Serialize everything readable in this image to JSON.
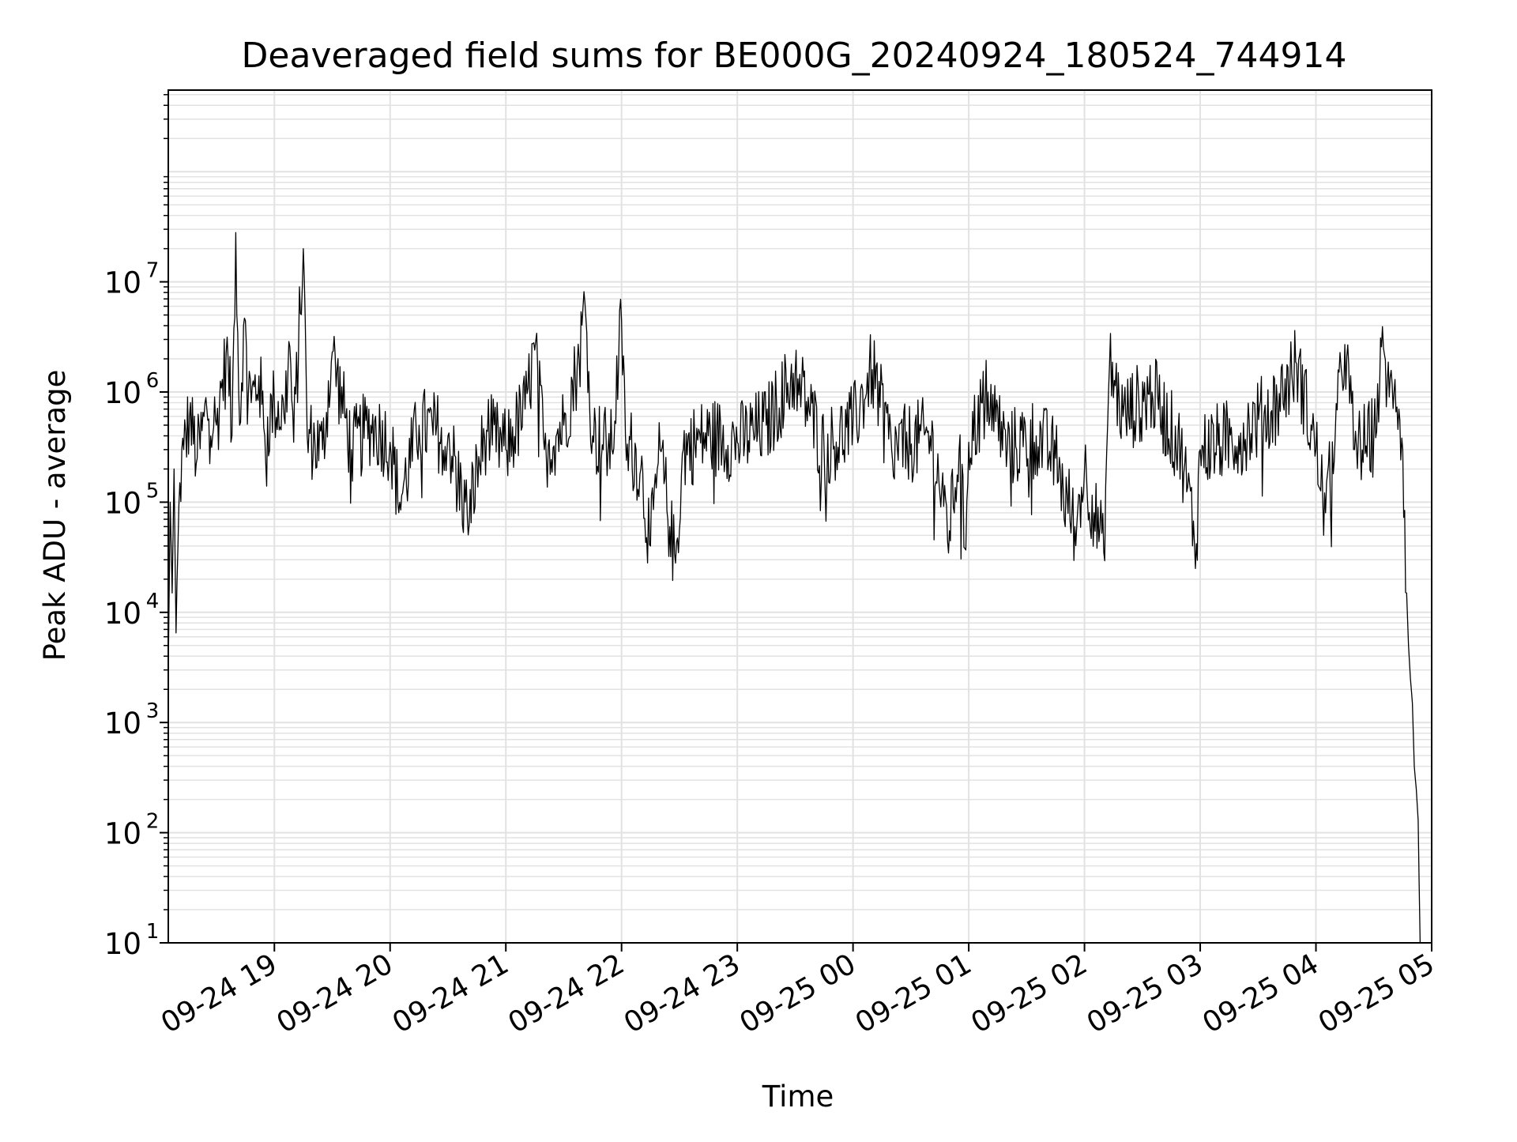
{
  "chart_data": {
    "type": "line",
    "title": "Deaveraged field sums for BE000G_20240924_180524_744914",
    "xlabel": "Time",
    "ylabel": "Peak ADU - average",
    "y_scale": "log",
    "ylim": [
      10,
      550000000
    ],
    "xlim": [
      "2024-09-24 18:05",
      "2024-09-25 05:00"
    ],
    "grid": true,
    "x_ticks": [
      {
        "time": "2024-09-24 19:00",
        "label": "09-24 19"
      },
      {
        "time": "2024-09-24 20:00",
        "label": "09-24 20"
      },
      {
        "time": "2024-09-24 21:00",
        "label": "09-24 21"
      },
      {
        "time": "2024-09-24 22:00",
        "label": "09-24 22"
      },
      {
        "time": "2024-09-24 23:00",
        "label": "09-24 23"
      },
      {
        "time": "2024-09-25 00:00",
        "label": "09-25 00"
      },
      {
        "time": "2024-09-25 01:00",
        "label": "09-25 01"
      },
      {
        "time": "2024-09-25 02:00",
        "label": "09-25 02"
      },
      {
        "time": "2024-09-25 03:00",
        "label": "09-25 03"
      },
      {
        "time": "2024-09-25 04:00",
        "label": "09-25 04"
      },
      {
        "time": "2024-09-25 05:00",
        "label": "09-25 05"
      }
    ],
    "y_ticks": [
      {
        "value": 10,
        "base": "10",
        "exp": "1"
      },
      {
        "value": 100,
        "base": "10",
        "exp": "2"
      },
      {
        "value": 1000,
        "base": "10",
        "exp": "3"
      },
      {
        "value": 10000,
        "base": "10",
        "exp": "4"
      },
      {
        "value": 100000,
        "base": "10",
        "exp": "5"
      },
      {
        "value": 1000000,
        "base": "10",
        "exp": "6"
      },
      {
        "value": 10000000,
        "base": "10",
        "exp": "7"
      }
    ],
    "series": [
      {
        "color": "#000000",
        "points": [
          [
            "2024-09-24 18:05",
            3000
          ],
          [
            "2024-09-24 18:06",
            100000
          ],
          [
            "2024-09-24 18:07",
            15000
          ],
          [
            "2024-09-24 18:08",
            200000
          ],
          [
            "2024-09-24 18:09",
            6500
          ],
          [
            "2024-09-24 18:11",
            150000
          ],
          [
            "2024-09-24 18:13",
            300000
          ],
          [
            "2024-09-24 18:16",
            600000
          ],
          [
            "2024-09-24 18:20",
            250000
          ],
          [
            "2024-09-24 18:25",
            700000
          ],
          [
            "2024-09-24 18:30",
            500000
          ],
          [
            "2024-09-24 18:33",
            1300000
          ],
          [
            "2024-09-24 18:36",
            2000000
          ],
          [
            "2024-09-24 18:38",
            400000
          ],
          [
            "2024-09-24 18:40",
            28000000
          ],
          [
            "2024-09-24 18:42",
            500000
          ],
          [
            "2024-09-24 18:44",
            4000000
          ],
          [
            "2024-09-24 18:48",
            800000
          ],
          [
            "2024-09-24 18:52",
            1400000
          ],
          [
            "2024-09-24 18:55",
            400000
          ],
          [
            "2024-09-24 19:00",
            800000
          ],
          [
            "2024-09-24 19:05",
            600000
          ],
          [
            "2024-09-24 19:08",
            2600000
          ],
          [
            "2024-09-24 19:10",
            350000
          ],
          [
            "2024-09-24 19:15",
            20000000
          ],
          [
            "2024-09-24 19:17",
            400000
          ],
          [
            "2024-09-24 19:25",
            300000
          ],
          [
            "2024-09-24 19:30",
            2300000
          ],
          [
            "2024-09-24 19:40",
            300000
          ],
          [
            "2024-09-24 19:50",
            500000
          ],
          [
            "2024-09-24 20:00",
            350000
          ],
          [
            "2024-09-24 20:05",
            100000
          ],
          [
            "2024-09-24 20:15",
            500000
          ],
          [
            "2024-09-24 20:30",
            400000
          ],
          [
            "2024-09-24 20:40",
            75000
          ],
          [
            "2024-09-24 20:50",
            450000
          ],
          [
            "2024-09-24 21:00",
            300000
          ],
          [
            "2024-09-24 21:10",
            700000
          ],
          [
            "2024-09-24 21:15",
            2400000
          ],
          [
            "2024-09-24 21:20",
            300000
          ],
          [
            "2024-09-24 21:30",
            500000
          ],
          [
            "2024-09-24 21:38",
            2000000
          ],
          [
            "2024-09-24 21:41",
            6500000
          ],
          [
            "2024-09-24 21:45",
            400000
          ],
          [
            "2024-09-24 21:55",
            300000
          ],
          [
            "2024-09-24 22:00",
            4400000
          ],
          [
            "2024-09-24 22:02",
            400000
          ],
          [
            "2024-09-24 22:10",
            200000
          ],
          [
            "2024-09-24 22:15",
            40000
          ],
          [
            "2024-09-24 22:20",
            300000
          ],
          [
            "2024-09-24 22:25",
            60000
          ],
          [
            "2024-09-24 22:28",
            28000
          ],
          [
            "2024-09-24 22:32",
            300000
          ],
          [
            "2024-09-24 22:45",
            400000
          ],
          [
            "2024-09-24 23:00",
            350000
          ],
          [
            "2024-09-24 23:15",
            500000
          ],
          [
            "2024-09-24 23:30",
            1500000
          ],
          [
            "2024-09-24 23:45",
            300000
          ],
          [
            "2024-09-25 00:00",
            500000
          ],
          [
            "2024-09-25 00:10",
            1600000
          ],
          [
            "2024-09-25 00:20",
            300000
          ],
          [
            "2024-09-25 00:40",
            400000
          ],
          [
            "2024-09-25 00:50",
            55000
          ],
          [
            "2024-09-25 00:55",
            300000
          ],
          [
            "2024-09-25 00:58",
            38000
          ],
          [
            "2024-09-25 01:00",
            350000
          ],
          [
            "2024-09-25 01:10",
            1000000
          ],
          [
            "2024-09-25 01:20",
            300000
          ],
          [
            "2024-09-25 01:35",
            400000
          ],
          [
            "2024-09-25 01:45",
            250000
          ],
          [
            "2024-09-25 01:55",
            60000
          ],
          [
            "2024-09-25 02:00",
            200000
          ],
          [
            "2024-09-25 02:10",
            35000
          ],
          [
            "2024-09-25 02:13",
            1800000
          ],
          [
            "2024-09-25 02:20",
            600000
          ],
          [
            "2024-09-25 02:35",
            1000000
          ],
          [
            "2024-09-25 02:50",
            300000
          ],
          [
            "2024-09-25 02:58",
            42000
          ],
          [
            "2024-09-25 03:00",
            300000
          ],
          [
            "2024-09-25 03:20",
            400000
          ],
          [
            "2024-09-25 03:40",
            800000
          ],
          [
            "2024-09-25 03:50",
            1800000
          ],
          [
            "2024-09-25 04:00",
            300000
          ],
          [
            "2024-09-25 04:05",
            80000
          ],
          [
            "2024-09-25 04:10",
            400000
          ],
          [
            "2024-09-25 04:15",
            2700000
          ],
          [
            "2024-09-25 04:20",
            300000
          ],
          [
            "2024-09-25 04:30",
            400000
          ],
          [
            "2024-09-25 04:35",
            2500000
          ],
          [
            "2024-09-25 04:38",
            900000
          ],
          [
            "2024-09-25 04:41",
            1300000
          ],
          [
            "2024-09-25 04:43",
            700000
          ],
          [
            "2024-09-25 04:45",
            300000
          ],
          [
            "2024-09-25 04:47",
            15000
          ],
          [
            "2024-09-25 04:48",
            5000
          ],
          [
            "2024-09-25 04:49",
            2500
          ],
          [
            "2024-09-25 04:50",
            1500
          ],
          [
            "2024-09-25 04:51",
            400
          ],
          [
            "2024-09-25 04:52",
            250
          ],
          [
            "2024-09-25 04:53",
            130
          ],
          [
            "2024-09-25 04:54",
            10
          ]
        ]
      }
    ]
  }
}
